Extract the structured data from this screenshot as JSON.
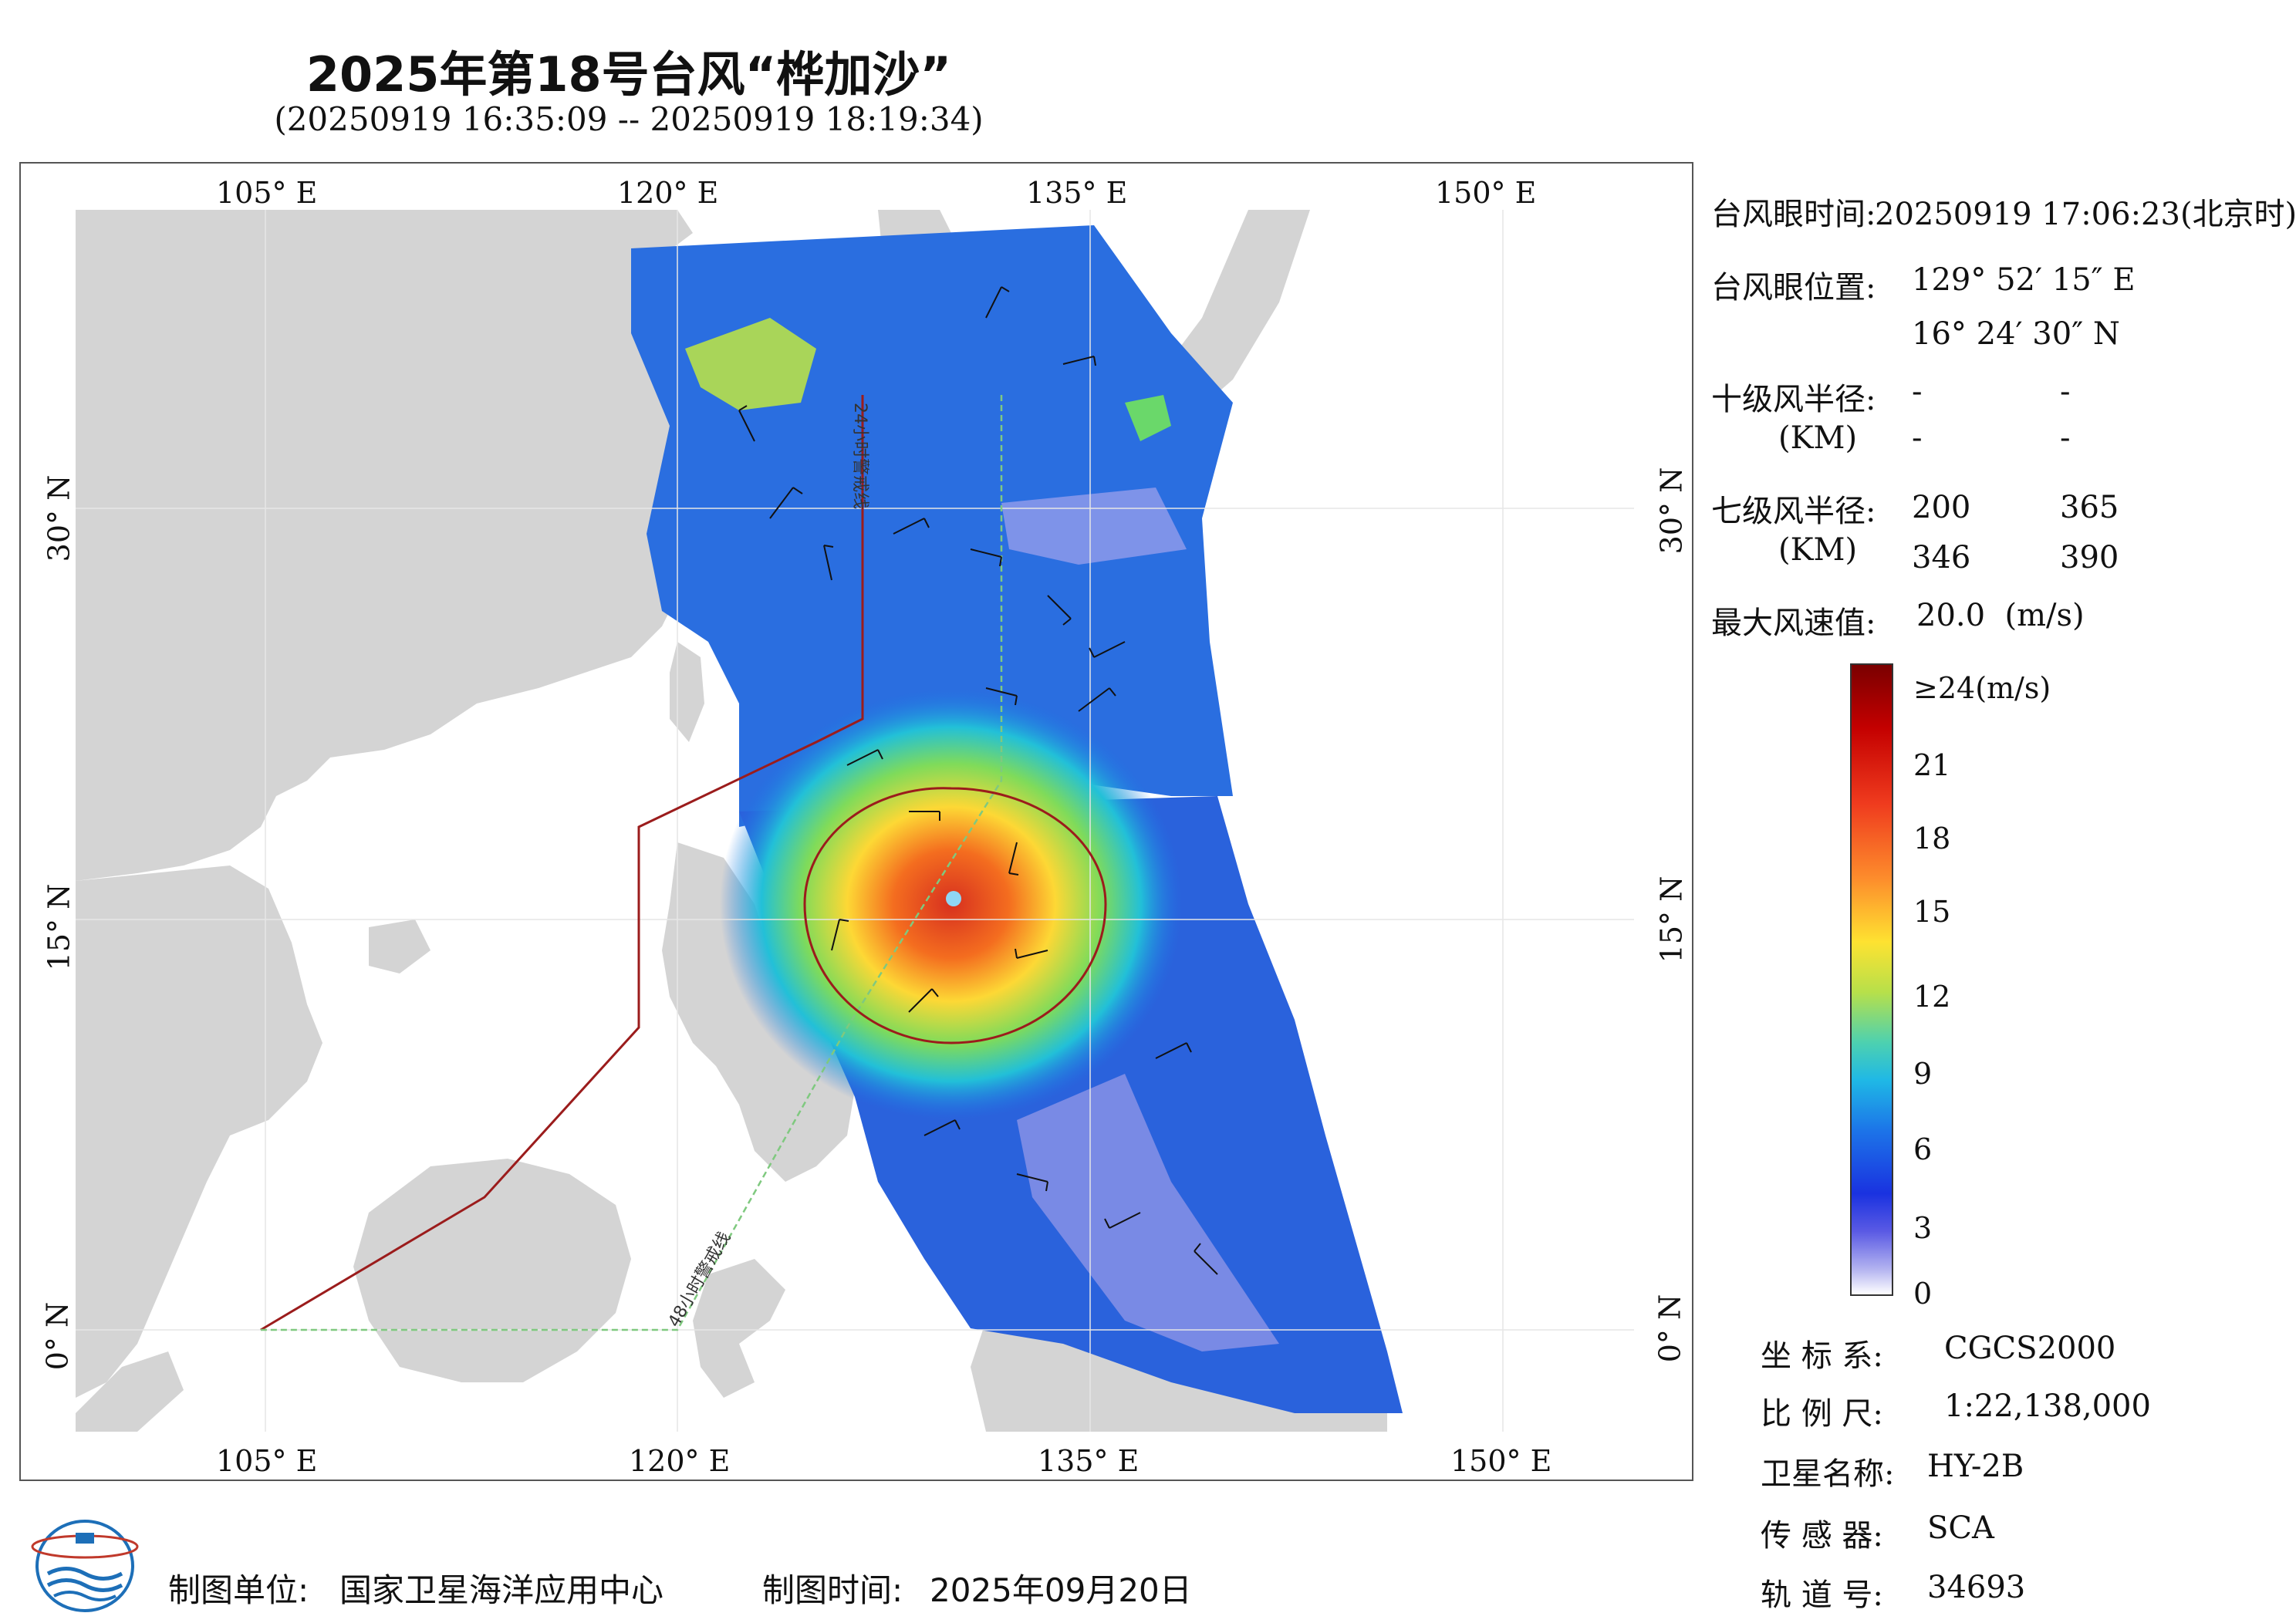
{
  "title": "2025年第18号台风“桦加沙”",
  "subtitle": "(20250919 16:35:09 -- 20250919 18:19:34)",
  "map": {
    "lon_labels": [
      "105° E",
      "120° E",
      "135° E",
      "150° E"
    ],
    "lat_labels": [
      "30° N",
      "15° N",
      "0° N"
    ],
    "warning_24h": "24小时警戒线",
    "warning_48h": "48小时警戒线",
    "colors": {
      "land": "#d4d4d4",
      "ocean": "#ffffff",
      "line_24": "#9b1c1c",
      "line_48": "#7fc97f"
    }
  },
  "info": {
    "eye_time_label": "台风眼时间:",
    "eye_time_value": "20250919 17:06:23(北京时)",
    "eye_pos_label": "台风眼位置:",
    "eye_lon": "129° 52′ 15″ E",
    "eye_lat": "16° 24′ 30″ N",
    "r10_label": "十级风半径:",
    "r10_unit": "(KM)",
    "r10_values": [
      "-",
      "-",
      "-",
      "-"
    ],
    "r7_label": "七级风半径:",
    "r7_unit": "(KM)",
    "r7_values": [
      "200",
      "365",
      "346",
      "390"
    ],
    "max_wind_label": "最大风速值:",
    "max_wind_value": "20.0  (m/s)"
  },
  "colorbar": {
    "labels": [
      "≥24(m/s)",
      "21",
      "18",
      "15",
      "12",
      "9",
      "6",
      "3",
      "0"
    ]
  },
  "meta": [
    {
      "label": "坐 标 系:",
      "value": "CGCS2000"
    },
    {
      "label": "比 例 尺:",
      "value": "1:22,138,000"
    },
    {
      "label": "卫星名称:",
      "value": "HY-2B"
    },
    {
      "label": "传 感 器:",
      "value": "SCA"
    },
    {
      "label": "轨 道 号:",
      "value": "34693"
    }
  ],
  "footer": {
    "unit_label": "制图单位:",
    "unit_value": "国家卫星海洋应用中心",
    "time_label": "制图时间:",
    "time_value": "2025年09月20日"
  }
}
